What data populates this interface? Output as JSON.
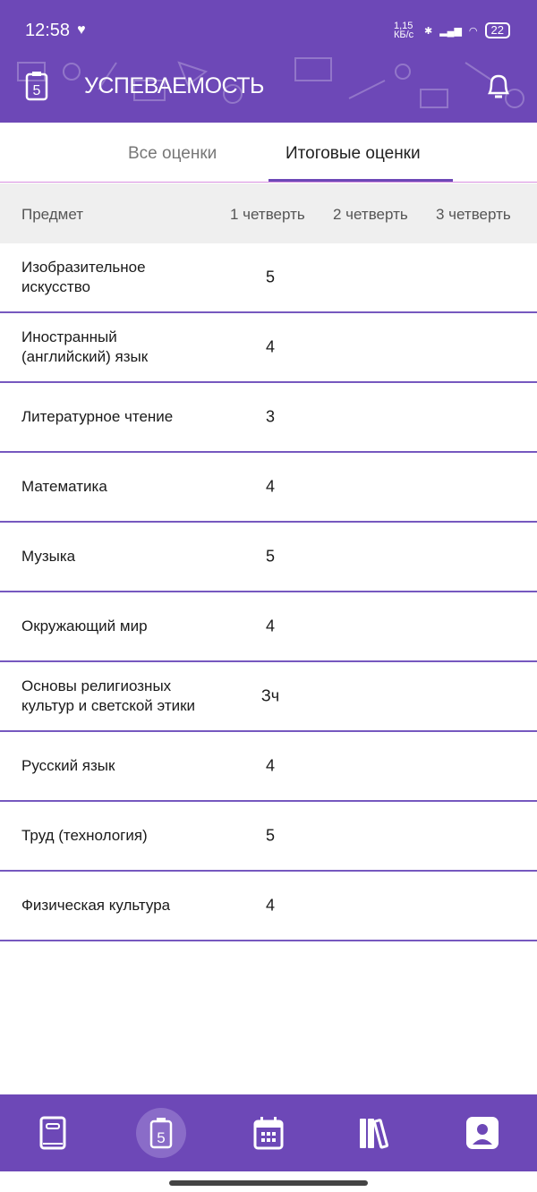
{
  "status_bar": {
    "time": "12:58",
    "net_speed": "1,15 КБ/с",
    "battery": "22"
  },
  "header": {
    "title": "УСПЕВАЕМОСТЬ",
    "icon_left": "grades-clipboard-icon",
    "icon_right": "bell-icon"
  },
  "tabs": [
    {
      "label": "Все оценки",
      "active": false
    },
    {
      "label": "Итоговые оценки",
      "active": true
    }
  ],
  "table": {
    "columns": [
      "Предмет",
      "1 четверть",
      "2 четверть",
      "3 четверть"
    ],
    "rows": [
      {
        "subject": "Изобразительное искусство",
        "q1": "5"
      },
      {
        "subject": "Иностранный (английский) язык",
        "q1": "4"
      },
      {
        "subject": "Литературное чтение",
        "q1": "3"
      },
      {
        "subject": "Математика",
        "q1": "4"
      },
      {
        "subject": "Музыка",
        "q1": "5"
      },
      {
        "subject": "Окружающий мир",
        "q1": "4"
      },
      {
        "subject": "Основы религиозных культур и светской этики",
        "q1": "Зч"
      },
      {
        "subject": "Русский язык",
        "q1": "4"
      },
      {
        "subject": "Труд (технология)",
        "q1": "5"
      },
      {
        "subject": "Физическая культура",
        "q1": "4"
      }
    ]
  },
  "bottom_nav": [
    {
      "icon": "diary-book-icon"
    },
    {
      "icon": "grades-clipboard-icon",
      "active": true
    },
    {
      "icon": "calendar-icon"
    },
    {
      "icon": "library-books-icon"
    },
    {
      "icon": "profile-icon"
    }
  ],
  "colors": {
    "primary": "#6d48b7",
    "divider": "#7658bf"
  }
}
